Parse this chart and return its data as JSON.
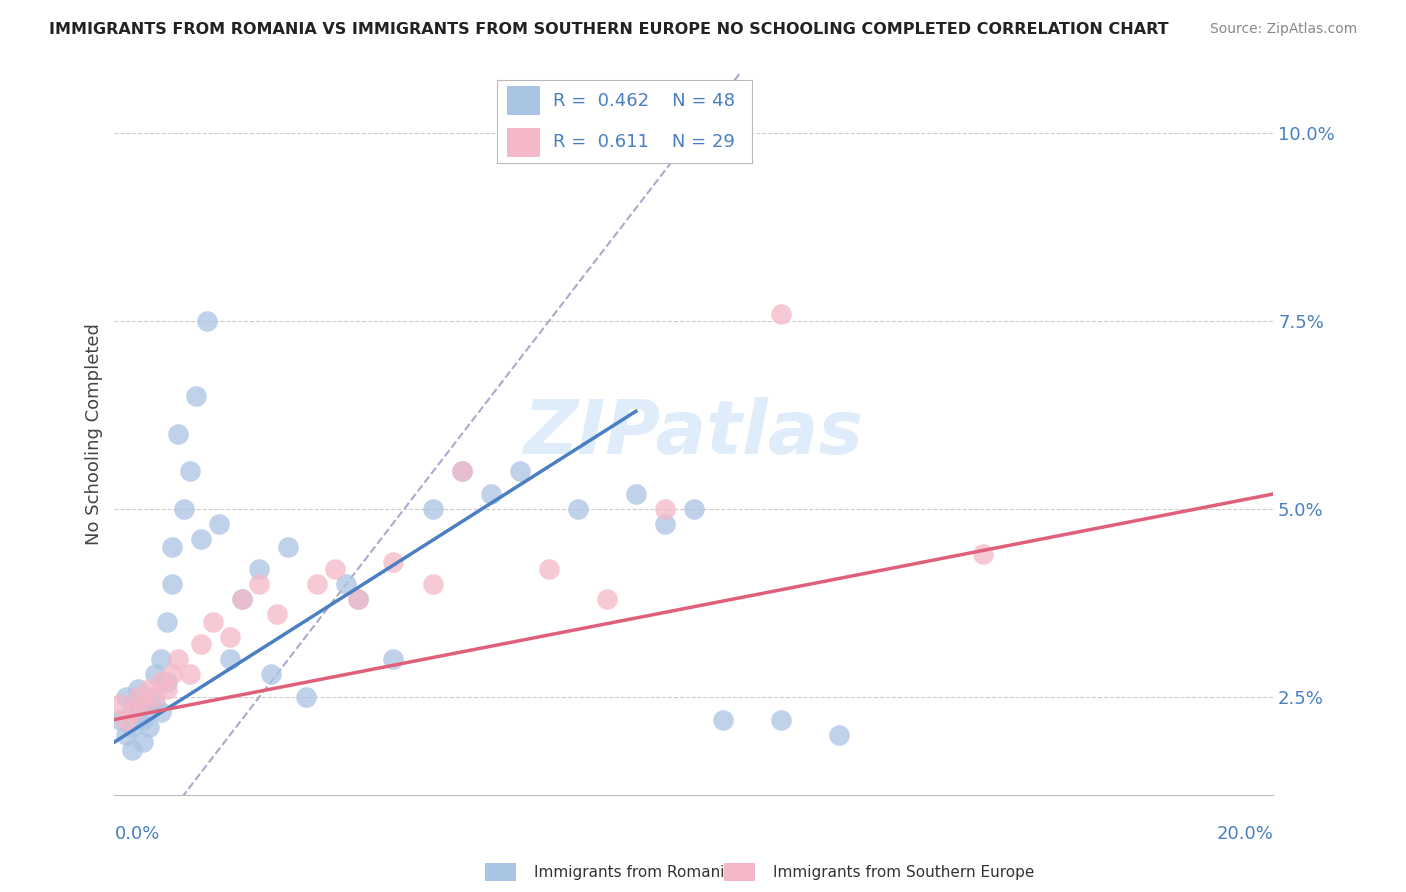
{
  "title": "IMMIGRANTS FROM ROMANIA VS IMMIGRANTS FROM SOUTHERN EUROPE NO SCHOOLING COMPLETED CORRELATION CHART",
  "source": "Source: ZipAtlas.com",
  "ylabel": "No Schooling Completed",
  "ylabel_right_ticks": [
    "2.5%",
    "5.0%",
    "7.5%",
    "10.0%"
  ],
  "ylabel_right_vals": [
    0.025,
    0.05,
    0.075,
    0.1
  ],
  "xlim": [
    0.0,
    0.2
  ],
  "ylim": [
    0.012,
    0.108
  ],
  "legend1_R": "0.462",
  "legend1_N": "48",
  "legend2_R": "0.611",
  "legend2_N": "29",
  "color_romania": "#aac4e4",
  "color_southern": "#f5b8c8",
  "color_romania_line": "#4a7fc1",
  "color_southern_line": "#e0607a",
  "color_ref_line": "#aaaacc",
  "romania_x": [
    0.001,
    0.002,
    0.002,
    0.003,
    0.003,
    0.003,
    0.004,
    0.004,
    0.005,
    0.005,
    0.005,
    0.006,
    0.006,
    0.007,
    0.007,
    0.008,
    0.008,
    0.009,
    0.009,
    0.01,
    0.01,
    0.011,
    0.012,
    0.013,
    0.014,
    0.015,
    0.016,
    0.018,
    0.02,
    0.022,
    0.025,
    0.027,
    0.03,
    0.033,
    0.04,
    0.042,
    0.048,
    0.055,
    0.06,
    0.065,
    0.07,
    0.08,
    0.09,
    0.095,
    0.1,
    0.105,
    0.115,
    0.125
  ],
  "romania_y": [
    0.022,
    0.02,
    0.025,
    0.021,
    0.024,
    0.018,
    0.023,
    0.026,
    0.022,
    0.019,
    0.024,
    0.021,
    0.025,
    0.024,
    0.028,
    0.03,
    0.023,
    0.035,
    0.027,
    0.04,
    0.045,
    0.06,
    0.05,
    0.055,
    0.065,
    0.046,
    0.075,
    0.048,
    0.03,
    0.038,
    0.042,
    0.028,
    0.045,
    0.025,
    0.04,
    0.038,
    0.03,
    0.05,
    0.055,
    0.052,
    0.055,
    0.05,
    0.052,
    0.048,
    0.05,
    0.022,
    0.022,
    0.02
  ],
  "southern_x": [
    0.001,
    0.002,
    0.003,
    0.004,
    0.005,
    0.006,
    0.007,
    0.008,
    0.009,
    0.01,
    0.011,
    0.013,
    0.015,
    0.017,
    0.02,
    0.022,
    0.025,
    0.028,
    0.035,
    0.038,
    0.042,
    0.048,
    0.055,
    0.06,
    0.075,
    0.085,
    0.095,
    0.115,
    0.15
  ],
  "southern_y": [
    0.024,
    0.022,
    0.023,
    0.025,
    0.024,
    0.026,
    0.025,
    0.027,
    0.026,
    0.028,
    0.03,
    0.028,
    0.032,
    0.035,
    0.033,
    0.038,
    0.04,
    0.036,
    0.04,
    0.042,
    0.038,
    0.043,
    0.04,
    0.055,
    0.042,
    0.038,
    0.05,
    0.076,
    0.044
  ],
  "romania_line_x": [
    0.0,
    0.09
  ],
  "romania_line_y": [
    0.019,
    0.063
  ],
  "southern_line_x": [
    0.0,
    0.2
  ],
  "southern_line_y": [
    0.022,
    0.052
  ],
  "ref_line_x": [
    0.0,
    0.2
  ],
  "ref_line_y": [
    0.0,
    0.2
  ],
  "ref_line_clip_ymax": 0.108
}
